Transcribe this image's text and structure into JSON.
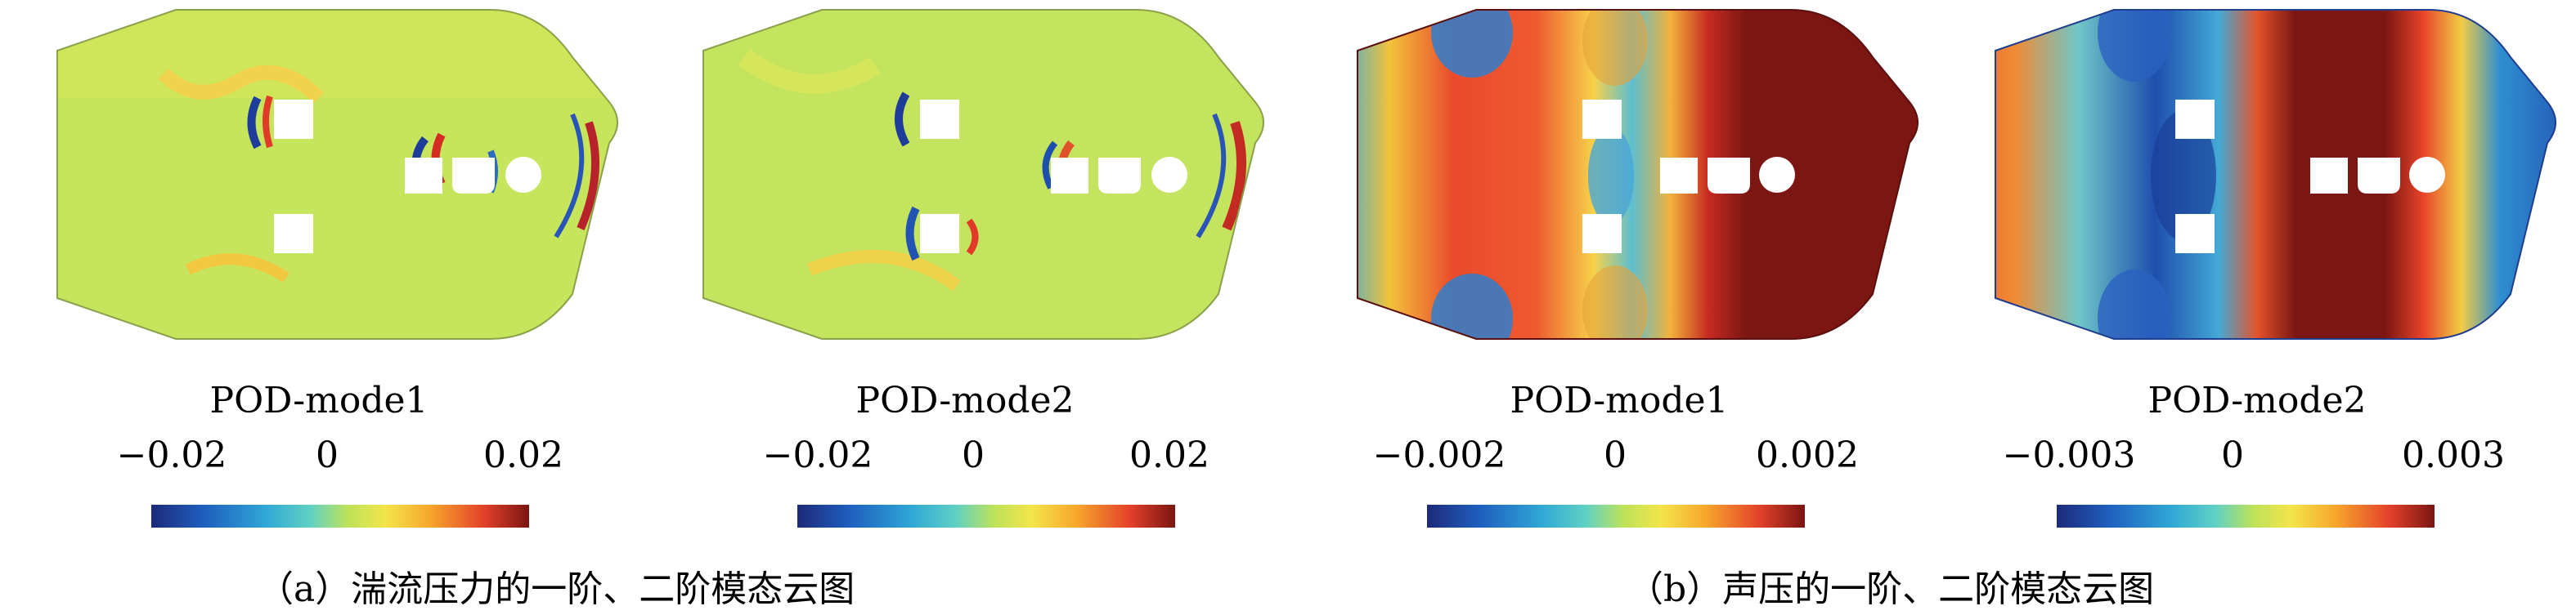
{
  "panels": [
    {
      "title": "POD-mode1",
      "ticks": [
        "−0.02",
        "0",
        "0.02"
      ]
    },
    {
      "title": "POD-mode2",
      "ticks": [
        "−0.02",
        "0",
        "0.02"
      ]
    },
    {
      "title": "POD-mode1",
      "ticks": [
        "−0.002",
        "0",
        "0.002"
      ]
    },
    {
      "title": "POD-mode2",
      "ticks": [
        "−0.003",
        "0",
        "0.003"
      ]
    }
  ],
  "captions": {
    "a": "（a）湍流压力的一阶、二阶模态云图",
    "b": "（b）声压的一阶、二阶模态云图"
  },
  "colormap": [
    "#1d2a7a",
    "#1f5fbf",
    "#2fa6d6",
    "#5fd1c4",
    "#bde25a",
    "#f3e54a",
    "#f7a52c",
    "#e3412a",
    "#7a1512"
  ]
}
